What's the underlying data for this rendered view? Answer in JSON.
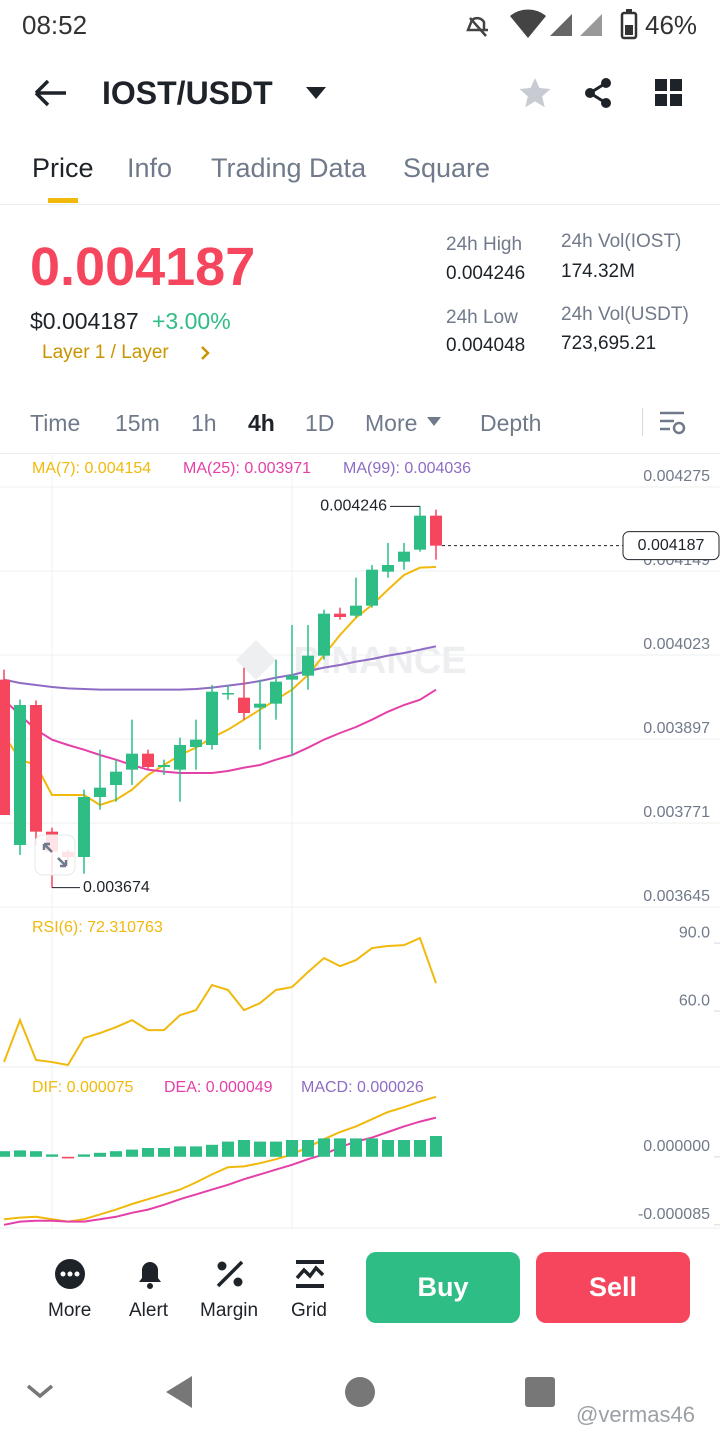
{
  "status_bar": {
    "time": "08:52",
    "battery": "46%"
  },
  "header": {
    "pair": "IOST/USDT"
  },
  "tabs": [
    "Price",
    "Info",
    "Trading Data",
    "Square"
  ],
  "price": {
    "last": "0.004187",
    "usd": "$0.004187",
    "change": "+3.00%",
    "tag": "Layer 1 / Layer"
  },
  "stats": [
    {
      "label": "24h High",
      "value": "0.004246"
    },
    {
      "label": "24h Vol(IOST)",
      "value": "174.32M"
    },
    {
      "label": "24h Low",
      "value": "0.004048"
    },
    {
      "label": "24h Vol(USDT)",
      "value": "723,695.21"
    }
  ],
  "intervals": [
    "Time",
    "15m",
    "1h",
    "4h",
    "1D",
    "More",
    "Depth"
  ],
  "watermark": "BINANCE",
  "chart_data": [
    {
      "type": "candlestick",
      "up_color": "#2ebd85",
      "down_color": "#f6465d",
      "open": [
        0.003986,
        0.003738,
        0.003948,
        0.003758,
        0.003728,
        0.00372,
        0.00381,
        0.003828,
        0.003851,
        0.003875,
        0.003855,
        0.003851,
        0.003885,
        0.003888,
        0.003966,
        0.003959,
        0.003944,
        0.00395,
        0.003986,
        0.003992,
        0.004022,
        0.004085,
        0.004082,
        0.004097,
        0.004148,
        0.004163,
        0.004181,
        0.004232
      ],
      "high": [
        0.004001,
        0.003956,
        0.003955,
        0.003764,
        0.003731,
        0.003821,
        0.003881,
        0.003866,
        0.003926,
        0.003881,
        0.003866,
        0.003899,
        0.003926,
        0.003978,
        0.003978,
        0.004004,
        0.003986,
        0.004016,
        0.004068,
        0.004068,
        0.004091,
        0.004094,
        0.004139,
        0.004158,
        0.004191,
        0.004191,
        0.004246,
        0.004241
      ],
      "low": [
        0.003783,
        0.003723,
        0.003738,
        0.003674,
        0.003713,
        0.003695,
        0.003791,
        0.003803,
        0.003828,
        0.003851,
        0.003843,
        0.003803,
        0.003851,
        0.003881,
        0.003956,
        0.003926,
        0.003881,
        0.003926,
        0.003873,
        0.003971,
        0.004016,
        0.004076,
        0.004079,
        0.004094,
        0.004139,
        0.004151,
        0.004178,
        0.004166
      ],
      "close": [
        0.003783,
        0.003948,
        0.003758,
        0.003728,
        0.00372,
        0.00381,
        0.003824,
        0.003848,
        0.003875,
        0.003855,
        0.003858,
        0.003888,
        0.003896,
        0.003968,
        0.003966,
        0.003936,
        0.00395,
        0.003983,
        0.003992,
        0.004022,
        0.004085,
        0.00408,
        0.004097,
        0.004151,
        0.004158,
        0.004178,
        0.004232,
        0.004187
      ],
      "series": [
        {
          "name": "MA(7): 0.004154",
          "color": "#f0b90b",
          "values": [
            0.003903,
            0.003866,
            0.003858,
            0.003813,
            0.003813,
            0.003813,
            0.003798,
            0.003806,
            0.003821,
            0.003843,
            0.003858,
            0.003873,
            0.003884,
            0.003899,
            0.003911,
            0.003926,
            0.003941,
            0.003956,
            0.003971,
            0.003993,
            0.004023,
            0.004053,
            0.004079,
            0.004098,
            0.004121,
            0.004143,
            0.004154,
            0.004155
          ]
        },
        {
          "name": "MA(25): 0.003971",
          "color": "#e440a8",
          "values": [
            0.003956,
            0.003933,
            0.003911,
            0.003896,
            0.003888,
            0.003881,
            0.003873,
            0.003866,
            0.003858,
            0.003851,
            0.003848,
            0.003846,
            0.003846,
            0.003846,
            0.003849,
            0.003854,
            0.003858,
            0.003866,
            0.003873,
            0.003884,
            0.003896,
            0.003906,
            0.003915,
            0.003926,
            0.003938,
            0.003948,
            0.003956,
            0.003971
          ]
        },
        {
          "name": "MA(99): 0.004036",
          "color": "#8e6bc4",
          "values": [
            0.003986,
            0.003981,
            0.003978,
            0.003975,
            0.003973,
            0.003972,
            0.003971,
            0.003971,
            0.003971,
            0.003971,
            0.003971,
            0.003971,
            0.003972,
            0.003974,
            0.003977,
            0.00398,
            0.003984,
            0.003989,
            0.003993,
            0.003999,
            0.004004,
            0.004008,
            0.004013,
            0.004017,
            0.004022,
            0.004026,
            0.004031,
            0.004036
          ]
        }
      ],
      "ylim": [
        0.003642,
        0.004323
      ],
      "yticks": [
        0.004275,
        0.004149,
        0.004023,
        0.003897,
        0.003771,
        0.003645
      ],
      "grid": true,
      "high_marker": 0.004246,
      "low_marker": 0.003674,
      "last_price": 0.004187
    },
    {
      "type": "line",
      "series": [
        {
          "name": "RSI(6): 72.310763",
          "color": "#f0b90b",
          "values": [
            37.5,
            56.0,
            38.4,
            37.5,
            36.2,
            48.1,
            50.3,
            52.9,
            56.0,
            51.6,
            51.6,
            58.2,
            60.4,
            71.5,
            69.3,
            60.4,
            63.5,
            69.3,
            70.6,
            77.2,
            83.4,
            79.8,
            82.5,
            87.8,
            88.7,
            89.1,
            92.2,
            72.3
          ]
        }
      ],
      "ylim": [
        36.2,
        104.6
      ],
      "yticks": [
        {
          "value": 90,
          "label": "90.0"
        },
        {
          "value": 60,
          "label": "60.0"
        }
      ],
      "grid": false
    },
    {
      "type": "macd",
      "up_color": "#2ebd85",
      "down_color": "#f6465d",
      "series": [
        {
          "name": "DIF: 0.000075",
          "color": "#f0b90b",
          "values": [
            -7.8e-05,
            -7.6e-05,
            -7.5e-05,
            -7.8e-05,
            -8.1e-05,
            -7.8e-05,
            -7.2e-05,
            -6.6e-05,
            -5.9e-05,
            -5.3e-05,
            -4.7e-05,
            -4.1e-05,
            -3.2e-05,
            -2.2e-05,
            -1.3e-05,
            -1.2e-05,
            -8e-06,
            -3e-06,
            3e-06,
            1.2e-05,
            2.2e-05,
            3.1e-05,
            3.8e-05,
            4.7e-05,
            5.6e-05,
            6.2e-05,
            6.9e-05,
            7.5e-05
          ]
        },
        {
          "name": "DEA: 0.000049",
          "color": "#e440a8",
          "values": [
            -8.5e-05,
            -8.1e-05,
            -8e-05,
            -8e-05,
            -8.1e-05,
            -8.1e-05,
            -7.8e-05,
            -7.5e-05,
            -7e-05,
            -6.6e-05,
            -6e-05,
            -5.3e-05,
            -4.7e-05,
            -4.1e-05,
            -3.5e-05,
            -2.8e-05,
            -2.2e-05,
            -1.6e-05,
            -1e-05,
            -3e-06,
            3e-06,
            1.2e-05,
            1.9e-05,
            2.4e-05,
            3.1e-05,
            3.8e-05,
            4.4e-05,
            4.9e-05
          ]
        },
        {
          "name": "MACD: 0.000026",
          "color": "#8e6bc4",
          "type": "bar",
          "values": [
            7e-06,
            8e-06,
            7e-06,
            3e-06,
            -2e-06,
            3e-06,
            5e-06,
            7e-06,
            9e-06,
            1.1e-05,
            1.1e-05,
            1.3e-05,
            1.3e-05,
            1.5e-05,
            1.9e-05,
            2.1e-05,
            1.9e-05,
            1.9e-05,
            2.1e-05,
            2.1e-05,
            2.3e-05,
            2.3e-05,
            2.3e-05,
            2.3e-05,
            2.1e-05,
            2.1e-05,
            2.1e-05,
            2.6e-05
          ]
        }
      ],
      "ylim": [
        -8.9e-05,
        0.000111
      ],
      "yticks": [
        {
          "value": 0,
          "label": "0.000000"
        },
        -8.5e-05
      ],
      "grid": false
    }
  ],
  "bottom_bar": {
    "actions": [
      "More",
      "Alert",
      "Margin",
      "Grid"
    ],
    "buy": "Buy",
    "sell": "Sell"
  },
  "credit": "@vermas46"
}
